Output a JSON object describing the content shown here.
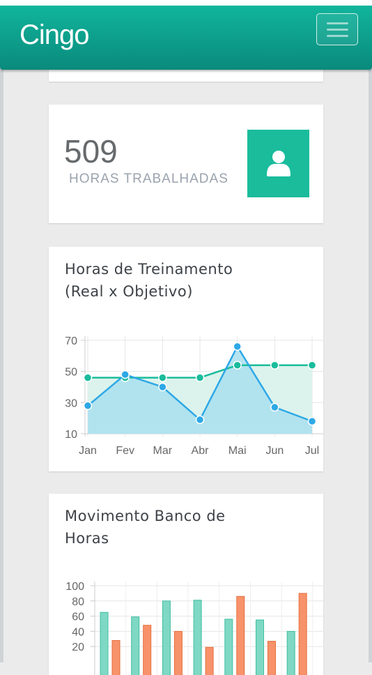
{
  "navbar": {
    "brand": "Cingo",
    "icon": "hamburger-menu-icon"
  },
  "stat": {
    "value": "509",
    "label": "HORAS TRABALHADAS",
    "icon": "user-icon",
    "accent": "#1abc9c"
  },
  "charts": {
    "training": {
      "title_line1": "Horas de Treinamento",
      "title_line2": "(Real x Objetivo)"
    },
    "bank": {
      "title_line1": "Movimento Banco de",
      "title_line2": "Horas"
    }
  },
  "chart_data": [
    {
      "type": "line",
      "title": "Horas de Treinamento (Real x Objetivo)",
      "categories": [
        "Jan",
        "Fev",
        "Mar",
        "Abr",
        "Mai",
        "Jun",
        "Jul"
      ],
      "series": [
        {
          "color": "#1abc9c",
          "fill": "#d7f2ea",
          "values": [
            46,
            46,
            46,
            46,
            54,
            54,
            54
          ]
        },
        {
          "color": "#2ea8e6",
          "fill": "#a9dff0",
          "values": [
            28,
            48,
            40,
            19,
            66,
            27,
            18
          ]
        }
      ],
      "yticks": [
        10,
        30,
        50,
        70
      ],
      "ylim": [
        10,
        70
      ],
      "grid": true
    },
    {
      "type": "bar",
      "title": "Movimento Banco de Horas",
      "series": [
        {
          "color": "#7fd8c3",
          "values": [
            65,
            59,
            80,
            81,
            56,
            55,
            40
          ]
        },
        {
          "color": "#f7926a",
          "values": [
            28,
            48,
            40,
            19,
            86,
            27,
            90
          ]
        }
      ],
      "yticks": [
        20,
        40,
        60,
        80,
        100
      ],
      "ylim": [
        0,
        100
      ],
      "grid": true
    }
  ]
}
